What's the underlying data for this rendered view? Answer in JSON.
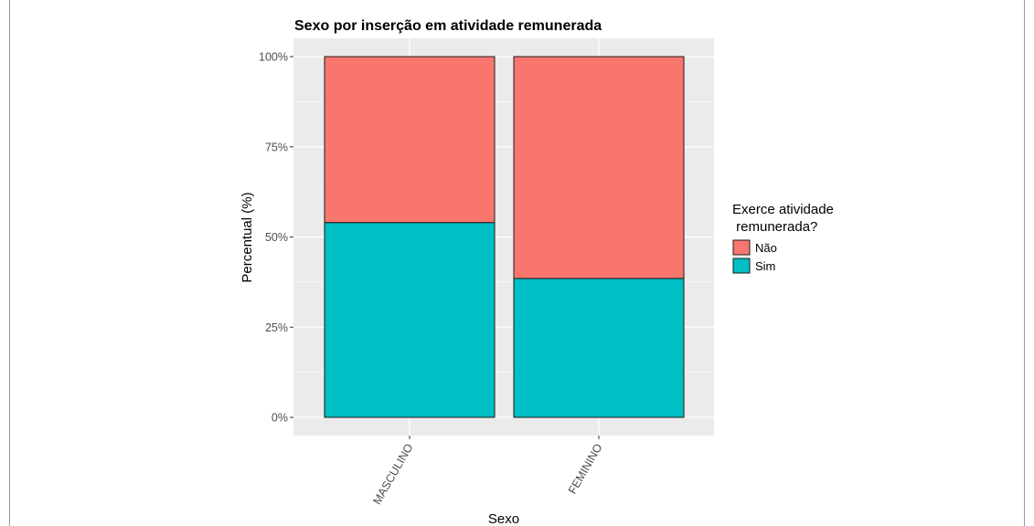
{
  "chart_data": {
    "type": "bar",
    "stacked": true,
    "percent": true,
    "title": "Sexo por inserção em atividade remunerada",
    "xlabel": "Sexo",
    "ylabel": "Percentual (%)",
    "categories": [
      "MASCULINO",
      "FEMININO"
    ],
    "yticks": [
      "0%",
      "25%",
      "50%",
      "75%",
      "100%"
    ],
    "ylim": [
      0,
      100
    ],
    "grid": true,
    "legend": {
      "title_line1": "Exerce atividade",
      "title_line2": " remunerada?",
      "placement": "right"
    },
    "series": [
      {
        "name": "Sim",
        "values": [
          54,
          38.5
        ],
        "color": "#00BFC4"
      },
      {
        "name": "Não",
        "values": [
          46,
          61.5
        ],
        "color": "#F8766D"
      }
    ],
    "panel_color": "#EBEBEB",
    "grid_color": "#FFFFFF"
  }
}
